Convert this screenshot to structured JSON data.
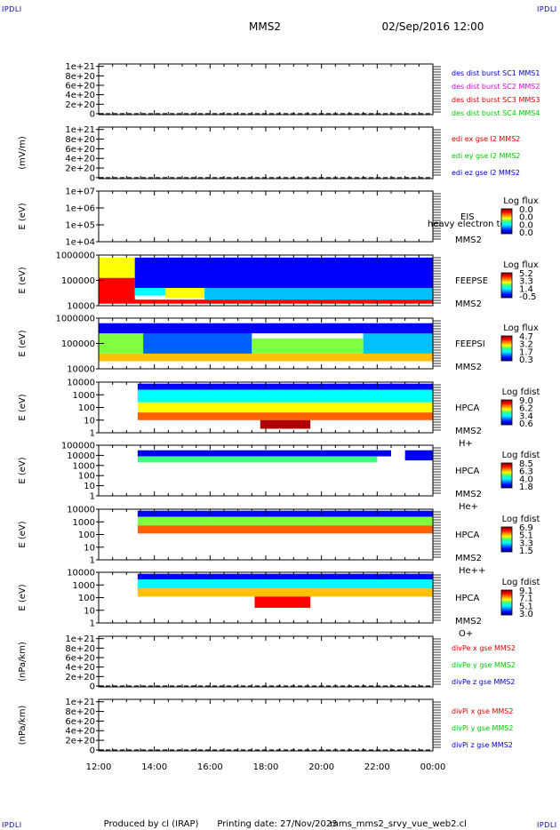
{
  "corners": {
    "tl": "IPDLI",
    "tr": "IPDLI",
    "bl": "IPDLI",
    "br": "IPDLI"
  },
  "header": {
    "mission": "MMS2",
    "date": "02/Sep/2016 12:00"
  },
  "footer": {
    "produced_by": "Produced by cl (IRAP)",
    "printing_date": "Printing date: 27/Nov/2023",
    "file": "mms_mms2_srvy_vue_web2.cl"
  },
  "colors": {
    "red": "#dd0000",
    "magenta": "#dd00dd",
    "green": "#00cc00",
    "blue": "#0000cc",
    "axis": "#000000"
  },
  "chart_data": {
    "type": "heatmap",
    "xaxis": {
      "start": "02/Sep/2016 12:00",
      "end": "03/Sep/2016 00:00",
      "tick_values_hours": [
        12,
        14,
        16,
        18,
        20,
        22,
        24
      ],
      "tick_labels": [
        "12:00",
        "14:00",
        "16:00",
        "18:00",
        "20:00",
        "22:00",
        "00:00"
      ]
    },
    "panels": [
      {
        "id": "p1",
        "kind": "line",
        "ylabel": "",
        "ytick_labels": [
          "1e+21",
          "8e+20",
          "6e+20",
          "4e+20",
          "2e+20",
          "0"
        ],
        "ytick_values": [
          1e+21,
          8e+20,
          6e+20,
          4e+20,
          2e+20,
          0
        ],
        "ylim": [
          -2e+19,
          1.05e+21
        ],
        "zero_line": "dashed",
        "legend": [
          {
            "text": "des dist burst SC1 MMS1",
            "color": "#0000cc"
          },
          {
            "text": "des dist burst SC2 MMS2",
            "color": "#dd00dd"
          },
          {
            "text": "des dist burst SC3 MMS3",
            "color": "#dd0000"
          },
          {
            "text": "des dist burst SC4 MMS4",
            "color": "#00cc00"
          }
        ]
      },
      {
        "id": "p2",
        "kind": "line",
        "ylabel": "(mV/m)",
        "ytick_labels": [
          "1e+21",
          "8e+20",
          "6e+20",
          "4e+20",
          "2e+20",
          "0"
        ],
        "ytick_values": [
          1e+21,
          8e+20,
          6e+20,
          4e+20,
          2e+20,
          0
        ],
        "ylim": [
          -2e+19,
          1.05e+21
        ],
        "zero_line": "dashed",
        "legend": [
          {
            "text": "edi ex gse l2 MMS2",
            "color": "#dd0000"
          },
          {
            "text": "edi ey gse l2 MMS2",
            "color": "#00cc00"
          },
          {
            "text": "edi ez gse l2 MMS2",
            "color": "#0000cc"
          }
        ]
      },
      {
        "id": "p3",
        "kind": "spectrogram",
        "ylabel": "E (eV)",
        "log_y": true,
        "ytick_labels": [
          "1e+07",
          "1e+06",
          "1e+05",
          "1e+04"
        ],
        "right_labels": [
          "EIS",
          "MMS2"
        ],
        "overlap_text": "heavy electron to",
        "colorbar": {
          "title": "Log flux",
          "tick_labels": [
            "0.0",
            "0.0",
            "0.0",
            "0.0"
          ]
        },
        "blocks": []
      },
      {
        "id": "p4",
        "kind": "spectrogram",
        "ylabel": "E (eV)",
        "log_y": true,
        "ytick_labels": [
          "1000000",
          "100000",
          "10000"
        ],
        "right_labels": [
          "FEEPSE",
          "MMS2"
        ],
        "colorbar": {
          "title": "Log flux",
          "tick_labels": [
            "5.2",
            "3.3",
            "1.4",
            "-0.5"
          ]
        },
        "blocks": [
          {
            "t0": 12.0,
            "t1": 13.3,
            "e0": 0.08,
            "e1": 0.55,
            "level": 0.93
          },
          {
            "t0": 12.0,
            "t1": 13.3,
            "e0": 0.55,
            "e1": 0.95,
            "level": 0.6
          },
          {
            "t0": 13.3,
            "t1": 14.4,
            "e0": 0.2,
            "e1": 0.9,
            "level": 0.35
          },
          {
            "t0": 14.4,
            "t1": 15.8,
            "e0": 0.15,
            "e1": 0.55,
            "level": 0.65
          },
          {
            "t0": 15.8,
            "t1": 24.0,
            "e0": 0.12,
            "e1": 0.35,
            "level": 0.3
          },
          {
            "t0": 13.3,
            "t1": 24.0,
            "e0": 0.35,
            "e1": 0.95,
            "level": 0.12
          },
          {
            "t0": 12.0,
            "t1": 24.0,
            "e0": 0.04,
            "e1": 0.12,
            "level": 0.88
          }
        ]
      },
      {
        "id": "p5",
        "kind": "spectrogram",
        "ylabel": "E (eV)",
        "log_y": true,
        "ytick_labels": [
          "1000000",
          "100000",
          "10000"
        ],
        "right_labels": [
          "FEEPSI",
          "MMS2"
        ],
        "colorbar": {
          "title": "Log flux",
          "tick_labels": [
            "4.7",
            "3.2",
            "1.7",
            "0.3"
          ]
        },
        "blocks": [
          {
            "t0": 12.0,
            "t1": 13.6,
            "e0": 0.3,
            "e1": 0.7,
            "level": 0.55
          },
          {
            "t0": 12.0,
            "t1": 24.0,
            "e0": 0.15,
            "e1": 0.3,
            "level": 0.72
          },
          {
            "t0": 13.6,
            "t1": 17.5,
            "e0": 0.3,
            "e1": 0.85,
            "level": 0.2
          },
          {
            "t0": 17.5,
            "t1": 21.5,
            "e0": 0.3,
            "e1": 0.6,
            "level": 0.55
          },
          {
            "t0": 21.5,
            "t1": 24.0,
            "e0": 0.3,
            "e1": 0.85,
            "level": 0.25
          },
          {
            "t0": 12.0,
            "t1": 24.0,
            "e0": 0.7,
            "e1": 0.9,
            "level": 0.08
          }
        ]
      },
      {
        "id": "p6",
        "kind": "spectrogram",
        "ylabel": "E (eV)",
        "log_y": true,
        "ytick_labels": [
          "10000",
          "1000",
          "100",
          "10",
          "1"
        ],
        "right_labels": [
          "HPCA",
          "MMS2",
          "H+"
        ],
        "colorbar": {
          "title": "Log fdist",
          "tick_labels": [
            "9.0",
            "6.2",
            "3.4",
            "0.6"
          ]
        },
        "blocks": [
          {
            "t0": 13.4,
            "t1": 24.0,
            "e0": 0.85,
            "e1": 0.97,
            "level": 0.1
          },
          {
            "t0": 13.4,
            "t1": 24.0,
            "e0": 0.6,
            "e1": 0.85,
            "level": 0.4
          },
          {
            "t0": 13.4,
            "t1": 24.0,
            "e0": 0.4,
            "e1": 0.6,
            "level": 0.62
          },
          {
            "t0": 13.4,
            "t1": 24.0,
            "e0": 0.25,
            "e1": 0.4,
            "level": 0.82
          },
          {
            "t0": 17.8,
            "t1": 19.6,
            "e0": 0.08,
            "e1": 0.25,
            "level": 0.97
          }
        ]
      },
      {
        "id": "p7",
        "kind": "spectrogram",
        "ylabel": "E (eV)",
        "log_y": true,
        "ytick_labels": [
          "100000",
          "10000",
          "1000",
          "100",
          "10",
          "1"
        ],
        "right_labels": [
          "HPCA",
          "MMS2",
          "He+"
        ],
        "colorbar": {
          "title": "Log fdist",
          "tick_labels": [
            "8.5",
            "6.3",
            "4.0",
            "1.8"
          ]
        },
        "blocks": [
          {
            "t0": 13.4,
            "t1": 22.5,
            "e0": 0.78,
            "e1": 0.9,
            "level": 0.05
          },
          {
            "t0": 13.4,
            "t1": 22.0,
            "e0": 0.66,
            "e1": 0.78,
            "level": 0.45
          },
          {
            "t0": 23.0,
            "t1": 24.0,
            "e0": 0.7,
            "e1": 0.9,
            "level": 0.05
          }
        ]
      },
      {
        "id": "p8",
        "kind": "spectrogram",
        "ylabel": "E (eV)",
        "log_y": true,
        "ytick_labels": [
          "10000",
          "1000",
          "100",
          "10",
          "1"
        ],
        "right_labels": [
          "HPCA",
          "MMS2",
          "He++"
        ],
        "colorbar": {
          "title": "Log fdist",
          "tick_labels": [
            "6.9",
            "5.1",
            "3.3",
            "1.5"
          ]
        },
        "blocks": [
          {
            "t0": 13.4,
            "t1": 24.0,
            "e0": 0.85,
            "e1": 0.97,
            "level": 0.12
          },
          {
            "t0": 13.4,
            "t1": 24.0,
            "e0": 0.68,
            "e1": 0.85,
            "level": 0.5
          },
          {
            "t0": 13.4,
            "t1": 24.0,
            "e0": 0.52,
            "e1": 0.68,
            "level": 0.82
          }
        ]
      },
      {
        "id": "p9",
        "kind": "spectrogram",
        "ylabel": "E (eV)",
        "log_y": true,
        "ytick_labels": [
          "10000",
          "1000",
          "100",
          "10",
          "1"
        ],
        "right_labels": [
          "HPCA",
          "MMS2",
          "O+"
        ],
        "colorbar": {
          "title": "Log fdist",
          "tick_labels": [
            "9.1",
            "7.1",
            "5.1",
            "3.0"
          ]
        },
        "blocks": [
          {
            "t0": 13.4,
            "t1": 24.0,
            "e0": 0.86,
            "e1": 0.97,
            "level": 0.05
          },
          {
            "t0": 13.4,
            "t1": 24.0,
            "e0": 0.68,
            "e1": 0.86,
            "level": 0.35
          },
          {
            "t0": 13.4,
            "t1": 24.0,
            "e0": 0.52,
            "e1": 0.68,
            "level": 0.7
          },
          {
            "t0": 17.6,
            "t1": 19.6,
            "e0": 0.3,
            "e1": 0.52,
            "level": 0.95
          }
        ]
      },
      {
        "id": "p10",
        "kind": "line",
        "ylabel": "(nPa/km)",
        "ytick_labels": [
          "1e+21",
          "8e+20",
          "6e+20",
          "4e+20",
          "2e+20",
          "0"
        ],
        "ytick_values": [
          1e+21,
          8e+20,
          6e+20,
          4e+20,
          2e+20,
          0
        ],
        "ylim": [
          -2e+19,
          1.05e+21
        ],
        "zero_line": "dashed",
        "legend": [
          {
            "text": "divPe x gse MMS2",
            "color": "#dd0000"
          },
          {
            "text": "divPe y gse MMS2",
            "color": "#00cc00"
          },
          {
            "text": "divPe z gse MMS2",
            "color": "#0000cc"
          }
        ]
      },
      {
        "id": "p11",
        "kind": "line",
        "ylabel": "(nPa/km)",
        "ytick_labels": [
          "1e+21",
          "8e+20",
          "6e+20",
          "4e+20",
          "2e+20",
          "0"
        ],
        "ytick_values": [
          1e+21,
          8e+20,
          6e+20,
          4e+20,
          2e+20,
          0
        ],
        "ylim": [
          -2e+19,
          1.05e+21
        ],
        "zero_line": "dashed",
        "legend": [
          {
            "text": "divPi x gse MMS2",
            "color": "#dd0000"
          },
          {
            "text": "divPi y gse MMS2",
            "color": "#00cc00"
          },
          {
            "text": "divPi z gse MMS2",
            "color": "#0000cc"
          }
        ]
      }
    ]
  }
}
